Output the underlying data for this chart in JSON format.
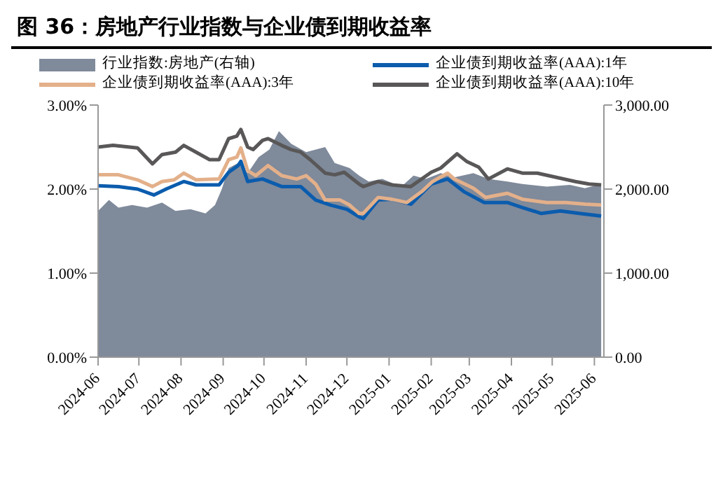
{
  "chart_data": {
    "type": "line",
    "title": "图 36：房地产行业指数与企业债到期收益率",
    "legend": "top",
    "xlim": [
      "2024-06-01",
      "2025-06-08"
    ],
    "xticks": [
      {
        "value": "2024-06-01",
        "label": "2024-06"
      },
      {
        "value": "2024-07-01",
        "label": "2024-07"
      },
      {
        "value": "2024-08-01",
        "label": "2024-08"
      },
      {
        "value": "2024-09-01",
        "label": "2024-09"
      },
      {
        "value": "2024-10-01",
        "label": "2024-10"
      },
      {
        "value": "2024-11-01",
        "label": "2024-11"
      },
      {
        "value": "2024-12-01",
        "label": "2024-12"
      },
      {
        "value": "2025-01-01",
        "label": "2025-01"
      },
      {
        "value": "2025-02-01",
        "label": "2025-02"
      },
      {
        "value": "2025-03-01",
        "label": "2025-03"
      },
      {
        "value": "2025-04-01",
        "label": "2025-04"
      },
      {
        "value": "2025-05-01",
        "label": "2025-05"
      },
      {
        "value": "2025-06-01",
        "label": "2025-06"
      }
    ],
    "ylim": [
      0,
      3
    ],
    "yticks": [
      {
        "value": 0,
        "label": "0.00%"
      },
      {
        "value": 1,
        "label": "1.00%"
      },
      {
        "value": 2,
        "label": "2.00%"
      },
      {
        "value": 3,
        "label": "3.00%"
      }
    ],
    "y2lim": [
      0,
      3000
    ],
    "y2ticks": [
      {
        "value": 0,
        "label": "0.00"
      },
      {
        "value": 1000,
        "label": "1,000.00"
      },
      {
        "value": 2000,
        "label": "2,000.00"
      },
      {
        "value": 3000,
        "label": "3,000.00"
      }
    ],
    "series": [
      {
        "name": "行业指数:房地产(右轴)",
        "type": "area",
        "axis": "y2",
        "color": "#7f8a9b",
        "x": [
          "2024-06-01",
          "2024-06-09",
          "2024-06-16",
          "2024-06-26",
          "2024-07-07",
          "2024-07-18",
          "2024-07-28",
          "2024-08-08",
          "2024-08-19",
          "2024-08-26",
          "2024-08-31",
          "2024-09-05",
          "2024-09-12",
          "2024-09-19",
          "2024-09-27",
          "2024-10-05",
          "2024-10-12",
          "2024-10-21",
          "2024-11-01",
          "2024-11-15",
          "2024-11-22",
          "2024-12-03",
          "2024-12-10",
          "2024-12-17",
          "2024-12-27",
          "2025-01-10",
          "2025-01-19",
          "2025-01-28",
          "2025-02-08",
          "2025-02-18",
          "2025-03-04",
          "2025-03-15",
          "2025-03-29",
          "2025-04-09",
          "2025-04-27",
          "2025-05-14",
          "2025-05-25",
          "2025-06-06"
        ],
        "values": [
          1740,
          1870,
          1780,
          1810,
          1780,
          1840,
          1740,
          1760,
          1710,
          1810,
          2000,
          2250,
          2310,
          2190,
          2380,
          2470,
          2690,
          2540,
          2440,
          2500,
          2310,
          2250,
          2160,
          2090,
          2120,
          2030,
          2160,
          2120,
          2190,
          2140,
          2190,
          2120,
          2090,
          2060,
          2030,
          2050,
          2010,
          2060
        ]
      },
      {
        "name": "企业债到期收益率(AAA):1年",
        "color": "#0b5cad",
        "x": [
          "2024-06-01",
          "2024-06-16",
          "2024-06-30",
          "2024-07-12",
          "2024-07-21",
          "2024-08-03",
          "2024-08-12",
          "2024-08-29",
          "2024-09-05",
          "2024-09-12",
          "2024-09-14",
          "2024-09-19",
          "2024-09-30",
          "2024-10-14",
          "2024-10-28",
          "2024-11-08",
          "2024-11-19",
          "2024-12-01",
          "2024-12-10",
          "2024-12-13",
          "2024-12-24",
          "2025-01-03",
          "2025-01-17",
          "2025-02-01",
          "2025-02-13",
          "2025-02-25",
          "2025-03-12",
          "2025-03-29",
          "2025-04-09",
          "2025-04-23",
          "2025-05-07",
          "2025-05-21",
          "2025-06-06"
        ],
        "values": [
          2.04,
          2.03,
          2.0,
          1.93,
          2.0,
          2.09,
          2.05,
          2.05,
          2.2,
          2.28,
          2.33,
          2.09,
          2.12,
          2.03,
          2.03,
          1.87,
          1.81,
          1.76,
          1.67,
          1.65,
          1.87,
          1.88,
          1.82,
          2.06,
          2.12,
          1.97,
          1.84,
          1.84,
          1.78,
          1.71,
          1.74,
          1.71,
          1.68
        ]
      },
      {
        "name": "企业债到期收益率(AAA):3年",
        "color": "#e3b08a",
        "x": [
          "2024-06-01",
          "2024-06-16",
          "2024-06-30",
          "2024-07-11",
          "2024-07-18",
          "2024-07-27",
          "2024-08-03",
          "2024-08-12",
          "2024-08-29",
          "2024-09-05",
          "2024-09-11",
          "2024-09-14",
          "2024-09-19",
          "2024-09-25",
          "2024-10-04",
          "2024-10-14",
          "2024-10-25",
          "2024-11-01",
          "2024-11-08",
          "2024-11-15",
          "2024-11-26",
          "2024-12-03",
          "2024-12-10",
          "2024-12-13",
          "2024-12-24",
          "2025-01-03",
          "2025-01-14",
          "2025-01-25",
          "2025-02-02",
          "2025-02-13",
          "2025-02-18",
          "2025-03-04",
          "2025-03-13",
          "2025-03-29",
          "2025-04-09",
          "2025-04-27",
          "2025-05-11",
          "2025-05-25",
          "2025-06-06"
        ],
        "values": [
          2.17,
          2.17,
          2.11,
          2.03,
          2.09,
          2.11,
          2.19,
          2.11,
          2.12,
          2.35,
          2.38,
          2.49,
          2.22,
          2.16,
          2.28,
          2.16,
          2.12,
          2.16,
          2.06,
          1.87,
          1.87,
          1.81,
          1.71,
          1.71,
          1.9,
          1.88,
          1.84,
          1.97,
          2.09,
          2.19,
          2.12,
          2.01,
          1.9,
          1.95,
          1.88,
          1.84,
          1.84,
          1.82,
          1.81
        ]
      },
      {
        "name": "企业债到期收益率(AAA):10年",
        "color": "#595757",
        "x": [
          "2024-06-01",
          "2024-06-12",
          "2024-06-30",
          "2024-07-11",
          "2024-07-18",
          "2024-07-28",
          "2024-08-03",
          "2024-08-12",
          "2024-08-22",
          "2024-08-29",
          "2024-09-05",
          "2024-09-11",
          "2024-09-14",
          "2024-09-19",
          "2024-09-23",
          "2024-09-30",
          "2024-10-04",
          "2024-10-14",
          "2024-10-21",
          "2024-10-28",
          "2024-11-04",
          "2024-11-15",
          "2024-11-22",
          "2024-11-29",
          "2024-12-10",
          "2024-12-13",
          "2024-12-24",
          "2025-01-03",
          "2025-01-17",
          "2025-02-01",
          "2025-02-08",
          "2025-02-20",
          "2025-02-27",
          "2025-03-08",
          "2025-03-15",
          "2025-03-29",
          "2025-04-09",
          "2025-04-20",
          "2025-05-04",
          "2025-05-18",
          "2025-05-28",
          "2025-06-06"
        ],
        "values": [
          2.5,
          2.52,
          2.49,
          2.3,
          2.41,
          2.44,
          2.52,
          2.44,
          2.35,
          2.35,
          2.6,
          2.63,
          2.71,
          2.5,
          2.47,
          2.58,
          2.6,
          2.52,
          2.47,
          2.44,
          2.35,
          2.19,
          2.17,
          2.2,
          2.06,
          2.03,
          2.09,
          2.05,
          2.03,
          2.2,
          2.25,
          2.42,
          2.33,
          2.26,
          2.12,
          2.24,
          2.19,
          2.19,
          2.14,
          2.09,
          2.06,
          2.05
        ]
      }
    ]
  }
}
